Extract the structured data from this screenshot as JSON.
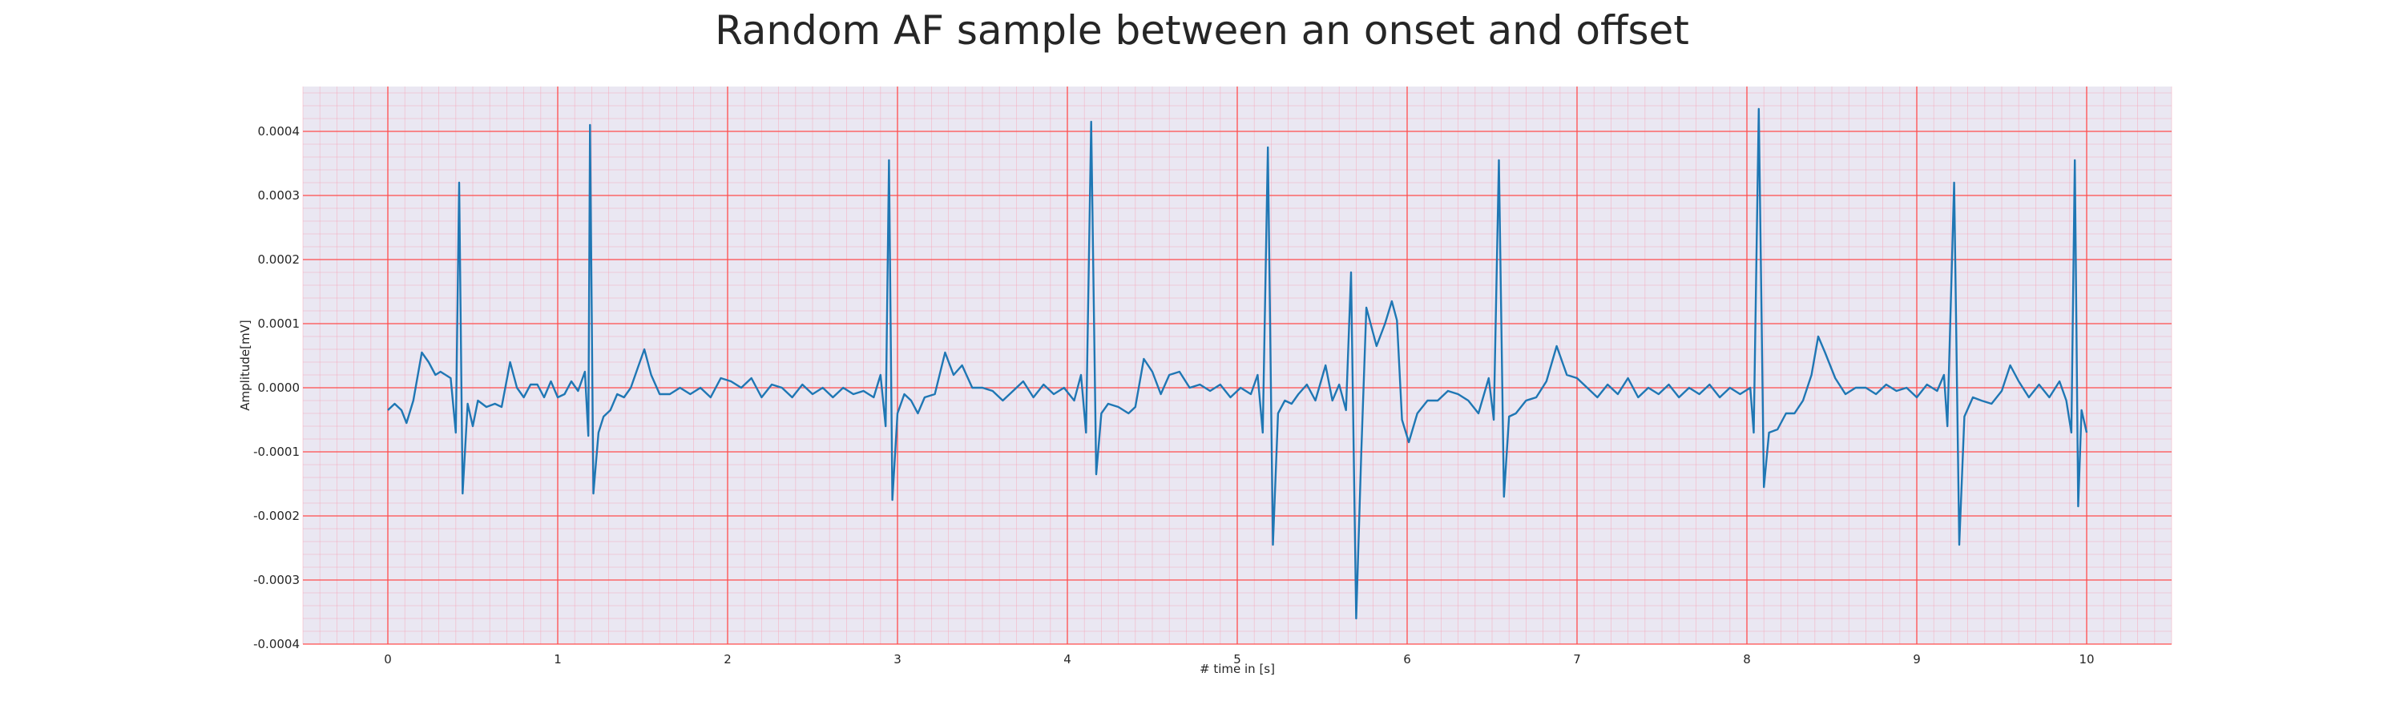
{
  "chart_data": {
    "type": "line",
    "title": "Random AF sample between an onset and offset",
    "xlabel": "# time in [s]",
    "ylabel": "Amplitude[mV]",
    "xlim": [
      -0.5,
      10.5
    ],
    "ylim": [
      -0.0004,
      0.00047
    ],
    "xticks": [
      0,
      1,
      2,
      3,
      4,
      5,
      6,
      7,
      8,
      9,
      10
    ],
    "xtick_labels": [
      "0",
      "1",
      "2",
      "3",
      "4",
      "5",
      "6",
      "7",
      "8",
      "9",
      "10"
    ],
    "yticks": [
      -0.0004,
      -0.0003,
      -0.0002,
      -0.0001,
      0.0,
      0.0001,
      0.0002,
      0.0003,
      0.0004
    ],
    "ytick_labels": [
      "-0.0004",
      "-0.0003",
      "-0.0002",
      "-0.0001",
      "0.0000",
      "0.0001",
      "0.0002",
      "0.0003",
      "0.0004"
    ],
    "grid": true,
    "colors": {
      "line": "#1f77b4",
      "background": "#eae7f2",
      "major_grid": "#ff4d4d",
      "minor_grid": "#f5a3b5"
    },
    "series": [
      {
        "values": [
          [
            0.0,
            -3.5e-05
          ],
          [
            0.04,
            -2.5e-05
          ],
          [
            0.08,
            -3.5e-05
          ],
          [
            0.11,
            -5.5e-05
          ],
          [
            0.15,
            -2e-05
          ],
          [
            0.2,
            5.5e-05
          ],
          [
            0.24,
            4e-05
          ],
          [
            0.28,
            2e-05
          ],
          [
            0.31,
            2.5e-05
          ],
          [
            0.34,
            2e-05
          ],
          [
            0.37,
            1.5e-05
          ],
          [
            0.4,
            -7e-05
          ],
          [
            0.42,
            0.00032
          ],
          [
            0.44,
            -0.000165
          ],
          [
            0.47,
            -2.5e-05
          ],
          [
            0.5,
            -6e-05
          ],
          [
            0.53,
            -2e-05
          ],
          [
            0.58,
            -3e-05
          ],
          [
            0.63,
            -2.5e-05
          ],
          [
            0.67,
            -3e-05
          ],
          [
            0.72,
            4e-05
          ],
          [
            0.76,
            0.0
          ],
          [
            0.8,
            -1.5e-05
          ],
          [
            0.84,
            5e-06
          ],
          [
            0.88,
            5e-06
          ],
          [
            0.92,
            -1.5e-05
          ],
          [
            0.96,
            1e-05
          ],
          [
            1.0,
            -1.5e-05
          ],
          [
            1.04,
            -1e-05
          ],
          [
            1.08,
            1e-05
          ],
          [
            1.12,
            -5e-06
          ],
          [
            1.16,
            2.5e-05
          ],
          [
            1.18,
            -7.5e-05
          ],
          [
            1.19,
            0.00041
          ],
          [
            1.21,
            -0.000165
          ],
          [
            1.24,
            -7e-05
          ],
          [
            1.27,
            -4.5e-05
          ],
          [
            1.31,
            -3.5e-05
          ],
          [
            1.35,
            -1e-05
          ],
          [
            1.39,
            -1.5e-05
          ],
          [
            1.43,
            0.0
          ],
          [
            1.47,
            3e-05
          ],
          [
            1.51,
            6e-05
          ],
          [
            1.55,
            2e-05
          ],
          [
            1.6,
            -1e-05
          ],
          [
            1.66,
            -1e-05
          ],
          [
            1.72,
            0.0
          ],
          [
            1.78,
            -1e-05
          ],
          [
            1.84,
            0.0
          ],
          [
            1.9,
            -1.5e-05
          ],
          [
            1.96,
            1.5e-05
          ],
          [
            2.02,
            1e-05
          ],
          [
            2.08,
            0.0
          ],
          [
            2.14,
            1.5e-05
          ],
          [
            2.2,
            -1.5e-05
          ],
          [
            2.26,
            5e-06
          ],
          [
            2.32,
            0.0
          ],
          [
            2.38,
            -1.5e-05
          ],
          [
            2.44,
            5e-06
          ],
          [
            2.5,
            -1e-05
          ],
          [
            2.56,
            0.0
          ],
          [
            2.62,
            -1.5e-05
          ],
          [
            2.68,
            0.0
          ],
          [
            2.74,
            -1e-05
          ],
          [
            2.8,
            -5e-06
          ],
          [
            2.86,
            -1.5e-05
          ],
          [
            2.9,
            2e-05
          ],
          [
            2.93,
            -6e-05
          ],
          [
            2.95,
            0.000355
          ],
          [
            2.97,
            -0.000175
          ],
          [
            3.0,
            -4e-05
          ],
          [
            3.04,
            -1e-05
          ],
          [
            3.08,
            -2e-05
          ],
          [
            3.12,
            -4e-05
          ],
          [
            3.16,
            -1.5e-05
          ],
          [
            3.22,
            -1e-05
          ],
          [
            3.28,
            5.5e-05
          ],
          [
            3.33,
            2e-05
          ],
          [
            3.38,
            3.5e-05
          ],
          [
            3.44,
            0.0
          ],
          [
            3.5,
            0.0
          ],
          [
            3.56,
            -5e-06
          ],
          [
            3.62,
            -2e-05
          ],
          [
            3.68,
            -5e-06
          ],
          [
            3.74,
            1e-05
          ],
          [
            3.8,
            -1.5e-05
          ],
          [
            3.86,
            5e-06
          ],
          [
            3.92,
            -1e-05
          ],
          [
            3.98,
            0.0
          ],
          [
            4.04,
            -2e-05
          ],
          [
            4.08,
            2e-05
          ],
          [
            4.11,
            -7e-05
          ],
          [
            4.14,
            0.000415
          ],
          [
            4.17,
            -0.000135
          ],
          [
            4.2,
            -4e-05
          ],
          [
            4.24,
            -2.5e-05
          ],
          [
            4.3,
            -3e-05
          ],
          [
            4.36,
            -4e-05
          ],
          [
            4.4,
            -3e-05
          ],
          [
            4.45,
            4.5e-05
          ],
          [
            4.5,
            2.5e-05
          ],
          [
            4.55,
            -1e-05
          ],
          [
            4.6,
            2e-05
          ],
          [
            4.66,
            2.5e-05
          ],
          [
            4.72,
            0.0
          ],
          [
            4.78,
            5e-06
          ],
          [
            4.84,
            -5e-06
          ],
          [
            4.9,
            5e-06
          ],
          [
            4.96,
            -1.5e-05
          ],
          [
            5.02,
            0.0
          ],
          [
            5.08,
            -1e-05
          ],
          [
            5.12,
            2e-05
          ],
          [
            5.15,
            -7e-05
          ],
          [
            5.18,
            0.000375
          ],
          [
            5.21,
            -0.000245
          ],
          [
            5.24,
            -4e-05
          ],
          [
            5.28,
            -2e-05
          ],
          [
            5.32,
            -2.5e-05
          ],
          [
            5.36,
            -1e-05
          ],
          [
            5.41,
            5e-06
          ],
          [
            5.46,
            -2e-05
          ],
          [
            5.52,
            3.5e-05
          ],
          [
            5.56,
            -2e-05
          ],
          [
            5.6,
            5e-06
          ],
          [
            5.64,
            -3.5e-05
          ],
          [
            5.67,
            0.00018
          ],
          [
            5.7,
            -0.00036
          ],
          [
            5.73,
            -0.0001
          ],
          [
            5.76,
            0.000125
          ],
          [
            5.82,
            6.5e-05
          ],
          [
            5.87,
            0.0001
          ],
          [
            5.91,
            0.000135
          ],
          [
            5.94,
            0.000105
          ],
          [
            5.97,
            -5e-05
          ],
          [
            6.01,
            -8.5e-05
          ],
          [
            6.06,
            -4e-05
          ],
          [
            6.12,
            -2e-05
          ],
          [
            6.18,
            -2e-05
          ],
          [
            6.24,
            -5e-06
          ],
          [
            6.3,
            -1e-05
          ],
          [
            6.36,
            -2e-05
          ],
          [
            6.42,
            -4e-05
          ],
          [
            6.48,
            1.5e-05
          ],
          [
            6.51,
            -5e-05
          ],
          [
            6.54,
            0.000355
          ],
          [
            6.57,
            -0.00017
          ],
          [
            6.6,
            -4.5e-05
          ],
          [
            6.64,
            -4e-05
          ],
          [
            6.7,
            -2e-05
          ],
          [
            6.76,
            -1.5e-05
          ],
          [
            6.82,
            1e-05
          ],
          [
            6.88,
            6.5e-05
          ],
          [
            6.94,
            2e-05
          ],
          [
            7.0,
            1.5e-05
          ],
          [
            7.06,
            0.0
          ],
          [
            7.12,
            -1.5e-05
          ],
          [
            7.18,
            5e-06
          ],
          [
            7.24,
            -1e-05
          ],
          [
            7.3,
            1.5e-05
          ],
          [
            7.36,
            -1.5e-05
          ],
          [
            7.42,
            0.0
          ],
          [
            7.48,
            -1e-05
          ],
          [
            7.54,
            5e-06
          ],
          [
            7.6,
            -1.5e-05
          ],
          [
            7.66,
            0.0
          ],
          [
            7.72,
            -1e-05
          ],
          [
            7.78,
            5e-06
          ],
          [
            7.84,
            -1.5e-05
          ],
          [
            7.9,
            0.0
          ],
          [
            7.96,
            -1e-05
          ],
          [
            8.02,
            0.0
          ],
          [
            8.04,
            -7e-05
          ],
          [
            8.07,
            0.000435
          ],
          [
            8.1,
            -0.000155
          ],
          [
            8.13,
            -7e-05
          ],
          [
            8.18,
            -6.5e-05
          ],
          [
            8.23,
            -4e-05
          ],
          [
            8.28,
            -4e-05
          ],
          [
            8.33,
            -2e-05
          ],
          [
            8.38,
            2e-05
          ],
          [
            8.42,
            8e-05
          ],
          [
            8.46,
            5.5e-05
          ],
          [
            8.52,
            1.5e-05
          ],
          [
            8.58,
            -1e-05
          ],
          [
            8.64,
            0.0
          ],
          [
            8.7,
            0.0
          ],
          [
            8.76,
            -1e-05
          ],
          [
            8.82,
            5e-06
          ],
          [
            8.88,
            -5e-06
          ],
          [
            8.94,
            0.0
          ],
          [
            9.0,
            -1.5e-05
          ],
          [
            9.06,
            5e-06
          ],
          [
            9.12,
            -5e-06
          ],
          [
            9.16,
            2e-05
          ],
          [
            9.18,
            -6e-05
          ],
          [
            9.22,
            0.00032
          ],
          [
            9.25,
            -0.000245
          ],
          [
            9.28,
            -4.5e-05
          ],
          [
            9.33,
            -1.5e-05
          ],
          [
            9.38,
            -2e-05
          ],
          [
            9.44,
            -2.5e-05
          ],
          [
            9.5,
            -5e-06
          ],
          [
            9.55,
            3.5e-05
          ],
          [
            9.6,
            1e-05
          ],
          [
            9.66,
            -1.5e-05
          ],
          [
            9.72,
            5e-06
          ],
          [
            9.78,
            -1.5e-05
          ],
          [
            9.84,
            1e-05
          ],
          [
            9.88,
            -2e-05
          ],
          [
            9.91,
            -7e-05
          ],
          [
            9.93,
            0.000355
          ],
          [
            9.95,
            -0.000185
          ],
          [
            9.97,
            -3.5e-05
          ],
          [
            10.0,
            -7e-05
          ]
        ]
      }
    ]
  }
}
